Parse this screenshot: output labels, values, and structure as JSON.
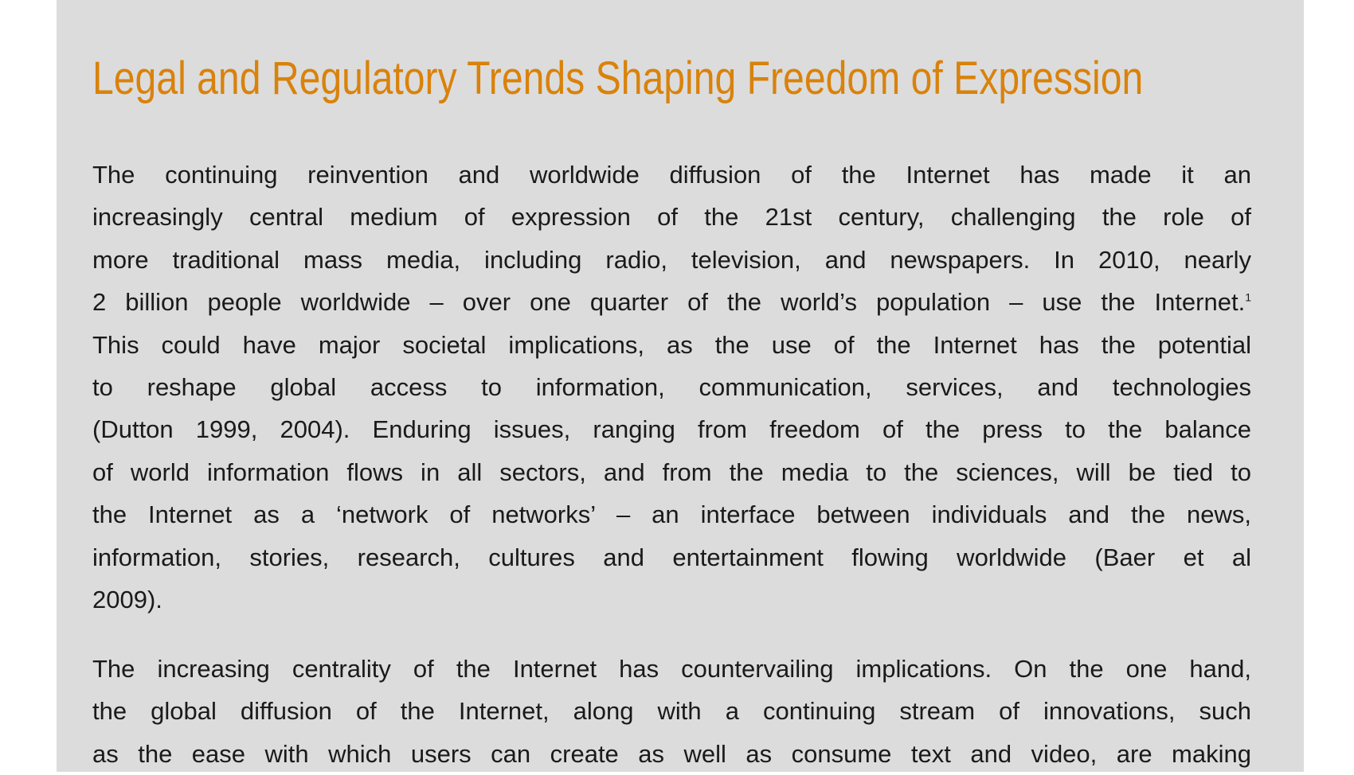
{
  "title": "Legal and Regulatory Trends Shaping Freedom of Expression",
  "paragraphs": [
    {
      "lines": [
        "The continuing reinvention and worldwide diffusion of the Internet has made it an",
        "increasingly central medium of expression of the 21st century, challenging the role of",
        "more traditional mass media, including radio, television, and newspapers. In 2010, nearly",
        "2 billion people worldwide – over one quarter of the world’s population – use the Internet.",
        "This could have major societal implications, as the use of the Internet has the potential",
        "to reshape global access to information, communication, services, and technologies",
        "(Dutton 1999, 2004). Enduring issues, ranging from freedom of the press to the balance",
        "of world information flows in all sectors, and from the media to the sciences, will be tied to",
        "the Internet as a ‘network of networks’ – an interface between individuals and the news,",
        "information, stories, research, cultures and entertainment flowing worldwide (Baer et al",
        "2009)."
      ],
      "footnote": {
        "line": 3,
        "mark": "1"
      }
    },
    {
      "lines": [
        "The increasing centrality of the Internet has countervailing implications. On the one hand,",
        "the global diffusion of the Internet, along with a continuing stream of innovations, such",
        "as the ease with which users can create as well as consume text and video, are making"
      ]
    }
  ]
}
